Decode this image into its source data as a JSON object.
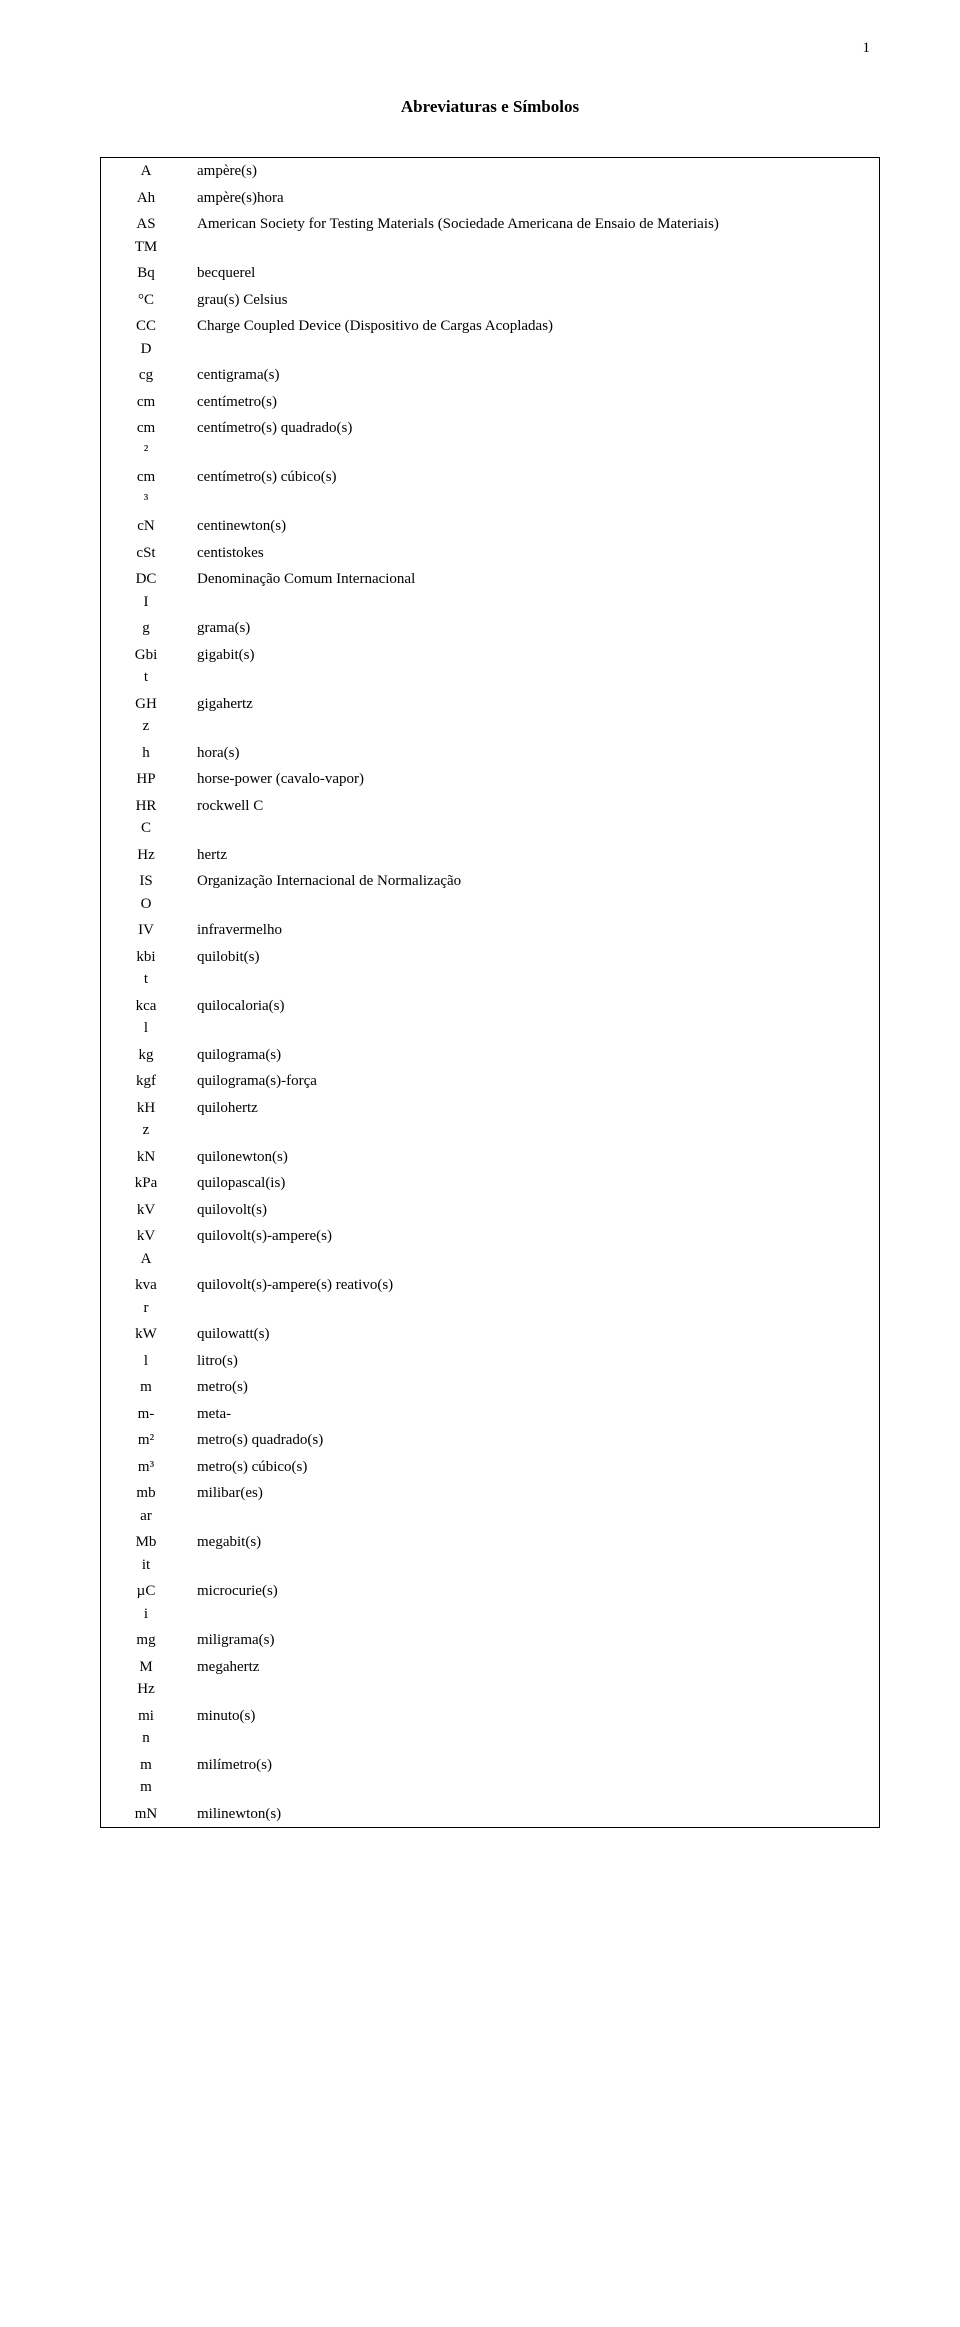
{
  "page_number": "1",
  "title": "Abreviaturas e Símbolos",
  "rows": [
    {
      "sym": "A",
      "def": "ampère(s)"
    },
    {
      "sym": "Ah",
      "def": "ampère(s)hora"
    },
    {
      "sym": "AS\nTM",
      "def": "American Society for Testing Materials (Sociedade Americana de Ensaio de Materiais)"
    },
    {
      "sym": "Bq",
      "def": "becquerel"
    },
    {
      "sym": "°C",
      "def": "grau(s) Celsius"
    },
    {
      "sym": "CC\nD",
      "def": "Charge Coupled Device (Dispositivo de Cargas Acopladas)"
    },
    {
      "sym": "cg",
      "def": "centigrama(s)"
    },
    {
      "sym": "cm",
      "def": "centímetro(s)"
    },
    {
      "sym": "cm\n²",
      "def": "centímetro(s) quadrado(s)"
    },
    {
      "sym": "cm\n³",
      "def": "centímetro(s) cúbico(s)"
    },
    {
      "sym": "cN",
      "def": "centinewton(s)"
    },
    {
      "sym": "cSt",
      "def": "centistokes"
    },
    {
      "sym": "DC\nI",
      "def": "Denominação Comum Internacional"
    },
    {
      "sym": "g",
      "def": "grama(s)"
    },
    {
      "sym": "Gbi\nt",
      "def": "gigabit(s)"
    },
    {
      "sym": "GH\nz",
      "def": "gigahertz"
    },
    {
      "sym": "h",
      "def": "hora(s)"
    },
    {
      "sym": "HP",
      "def": "horse-power (cavalo-vapor)"
    },
    {
      "sym": "HR\nC",
      "def": "rockwell C"
    },
    {
      "sym": "Hz",
      "def": "hertz"
    },
    {
      "sym": "IS\nO",
      "def": "Organização Internacional de Normalização"
    },
    {
      "sym": "IV",
      "def": "infravermelho"
    },
    {
      "sym": "kbi\nt",
      "def": "quilobit(s)"
    },
    {
      "sym": "kca\nl",
      "def": "quilocaloria(s)"
    },
    {
      "sym": "kg",
      "def": "quilograma(s)"
    },
    {
      "sym": "kgf",
      "def": "quilograma(s)-força"
    },
    {
      "sym": "kH\nz",
      "def": "quilohertz"
    },
    {
      "sym": "kN",
      "def": "quilonewton(s)"
    },
    {
      "sym": "kPa",
      "def": "quilopascal(is)"
    },
    {
      "sym": "kV",
      "def": "quilovolt(s)"
    },
    {
      "sym": "kV\nA",
      "def": "quilovolt(s)-ampere(s)"
    },
    {
      "sym": "kva\nr",
      "def": "quilovolt(s)-ampere(s) reativo(s)"
    },
    {
      "sym": "kW",
      "def": "quilowatt(s)"
    },
    {
      "sym": "l",
      "def": "litro(s)"
    },
    {
      "sym": "m",
      "def": "metro(s)"
    },
    {
      "sym": "m-",
      "def": "meta-"
    },
    {
      "sym": "m²",
      "def": "metro(s) quadrado(s)"
    },
    {
      "sym": "m³",
      "def": "metro(s) cúbico(s)"
    },
    {
      "sym": "mb\nar",
      "def": "milibar(es)"
    },
    {
      "sym": "Mb\nit",
      "def": "megabit(s)"
    },
    {
      "sym": "µC\ni",
      "def": "microcurie(s)"
    },
    {
      "sym": "mg",
      "def": "miligrama(s)"
    },
    {
      "sym": "M\nHz",
      "def": "megahertz"
    },
    {
      "sym": "mi\nn",
      "def": "minuto(s)"
    },
    {
      "sym": "m\nm",
      "def": "milímetro(s)"
    },
    {
      "sym": "mN",
      "def": "milinewton(s)"
    }
  ]
}
